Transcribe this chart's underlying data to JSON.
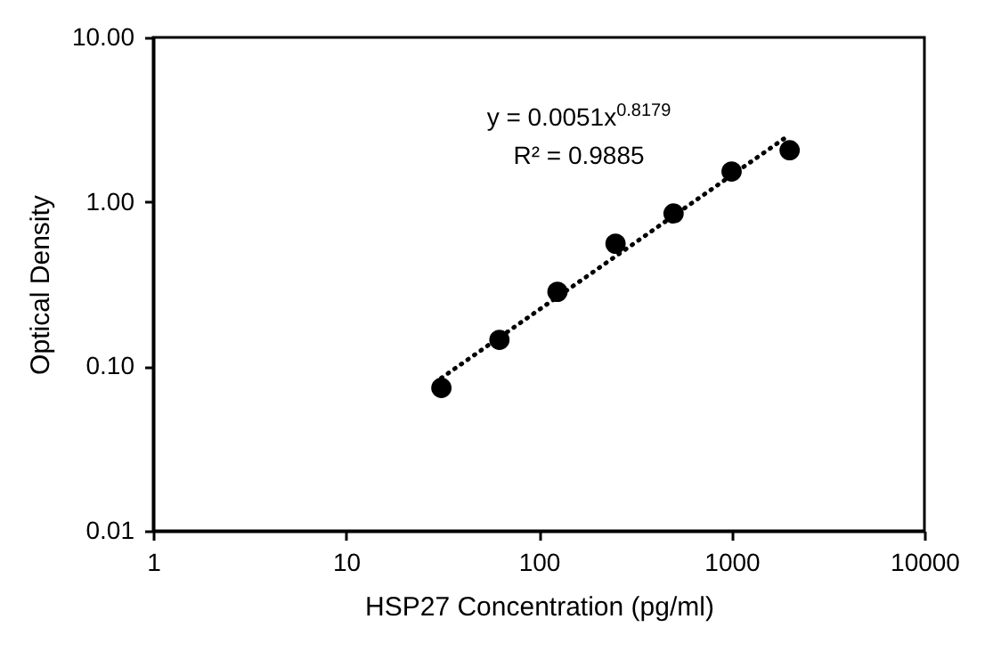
{
  "chart_data": {
    "type": "scatter",
    "xlabel": "HSP27 Concentration (pg/ml)",
    "ylabel": "Optical Density",
    "log": "xy",
    "grid": false,
    "marker": "circle",
    "xlim": [
      1,
      10000
    ],
    "xticks": [
      1,
      10,
      100,
      1000,
      10000
    ],
    "ylim": [
      0.01,
      10
    ],
    "yticks": [
      {
        "value": 0.01,
        "label": "0.01"
      },
      {
        "value": 0.1,
        "label": "0.10"
      },
      {
        "value": 1,
        "label": "1.00"
      },
      {
        "value": 10,
        "label": "10.00"
      }
    ],
    "series": [
      {
        "color": "#000000",
        "x": [
          31.25,
          62.5,
          125,
          250,
          500,
          1000,
          2000
        ],
        "values": [
          0.074,
          0.145,
          0.284,
          0.557,
          0.85,
          1.53,
          2.06
        ]
      },
      {
        "type": "line",
        "color": "#000000",
        "line_style": "dotted",
        "marker": "none",
        "x": [
          31.25,
          2000
        ],
        "values": [
          0.085,
          2.56
        ]
      }
    ],
    "annotations": [
      "y = 0.0051x$^{0.8179}$",
      "R² = 0.9885"
    ]
  }
}
